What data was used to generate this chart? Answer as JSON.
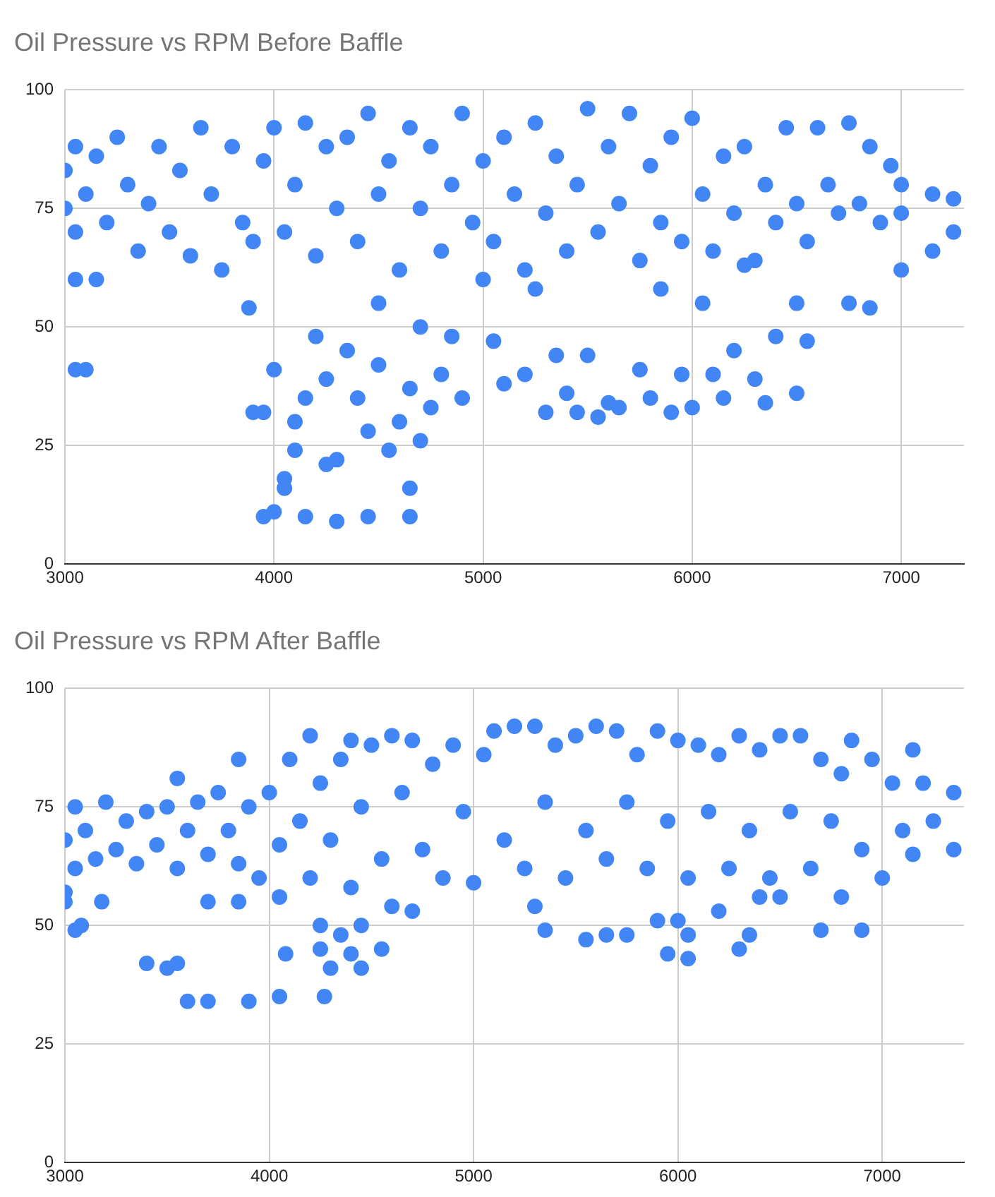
{
  "chart_data": [
    {
      "type": "scatter",
      "title": "Oil Pressure vs RPM Before Baffle",
      "xlim": [
        3000,
        7300
      ],
      "xticks": [
        3000,
        4000,
        5000,
        6000,
        7000
      ],
      "ylim": [
        0,
        100
      ],
      "yticks": [
        0,
        25,
        50,
        75,
        100
      ],
      "grid": true,
      "marker": "circle",
      "series": [
        {
          "color": "#4285f4",
          "x": [
            3000,
            3000,
            3050,
            3050,
            3100,
            3150,
            3200,
            3250,
            3300,
            3350,
            3400,
            3450,
            3500,
            3550,
            3600,
            3650,
            3700,
            3750,
            3800,
            3850,
            3900,
            3950,
            4000,
            4050,
            4100,
            4150,
            4200,
            4250,
            4300,
            4350,
            4400,
            4450,
            4500,
            4550,
            4600,
            4650,
            4700,
            4750,
            4800,
            4850,
            4900,
            4950,
            5000,
            5050,
            5100,
            5150,
            5200,
            5250,
            5300,
            5350,
            5400,
            5450,
            5500,
            5550,
            5600,
            5650,
            5700,
            5750,
            5800,
            5850,
            5900,
            5950,
            6000,
            6050,
            6100,
            6150,
            6200,
            6250,
            6300,
            6350,
            6400,
            6450,
            6500,
            6550,
            6600,
            6650,
            6700,
            6750,
            6800,
            6850,
            6900,
            6950,
            7000,
            7000,
            7150,
            7150,
            7250,
            7250,
            3050,
            3150,
            3050,
            3100,
            3880,
            3900,
            3950,
            4000,
            3950,
            4000,
            4050,
            4050,
            4100,
            4100,
            4150,
            4150,
            4200,
            4250,
            4250,
            4300,
            4300,
            4350,
            4400,
            4450,
            4450,
            4500,
            4550,
            4600,
            4650,
            4650,
            4650,
            4700,
            4750,
            4800,
            4850,
            4900,
            5050,
            5100,
            5200,
            5300,
            5350,
            5400,
            5450,
            5500,
            5550,
            5600,
            5650,
            5750,
            5800,
            5900,
            5950,
            6000,
            6050,
            6100,
            6150,
            6200,
            6300,
            6350,
            6400,
            6500,
            6500,
            6550,
            6750,
            6850,
            7000,
            4500,
            4700,
            5000,
            5250,
            5850,
            6250
          ],
          "values": [
            75,
            83,
            70,
            88,
            78,
            86,
            72,
            90,
            80,
            66,
            76,
            88,
            70,
            83,
            65,
            92,
            78,
            62,
            88,
            72,
            68,
            85,
            92,
            70,
            80,
            93,
            65,
            88,
            75,
            90,
            68,
            95,
            78,
            85,
            62,
            92,
            75,
            88,
            66,
            80,
            95,
            72,
            85,
            68,
            90,
            78,
            62,
            93,
            74,
            86,
            66,
            80,
            96,
            70,
            88,
            76,
            95,
            64,
            84,
            72,
            90,
            68,
            94,
            78,
            66,
            86,
            74,
            88,
            64,
            80,
            72,
            92,
            76,
            68,
            92,
            80,
            74,
            93,
            76,
            88,
            72,
            84,
            74,
            80,
            78,
            66,
            70,
            77,
            60,
            60,
            41,
            41,
            54,
            32,
            32,
            41,
            10,
            11,
            16,
            18,
            24,
            30,
            10,
            35,
            48,
            21,
            39,
            9,
            22,
            45,
            35,
            10,
            28,
            42,
            24,
            30,
            16,
            10,
            37,
            26,
            33,
            40,
            48,
            35,
            47,
            38,
            40,
            32,
            44,
            36,
            32,
            44,
            31,
            34,
            33,
            41,
            35,
            32,
            40,
            33,
            55,
            40,
            35,
            45,
            39,
            34,
            48,
            36,
            55,
            47,
            55,
            54,
            62,
            55,
            50,
            60,
            58,
            58,
            63
          ]
        }
      ]
    },
    {
      "type": "scatter",
      "title": "Oil Pressure vs RPM After Baffle",
      "xlim": [
        3000,
        7400
      ],
      "xticks": [
        3000,
        4000,
        5000,
        6000,
        7000
      ],
      "ylim": [
        0,
        100
      ],
      "yticks": [
        0,
        25,
        50,
        75,
        100
      ],
      "grid": true,
      "marker": "circle",
      "series": [
        {
          "color": "#4285f4",
          "x": [
            3000,
            3000,
            3050,
            3050,
            3100,
            3150,
            3200,
            3250,
            3300,
            3350,
            3400,
            3450,
            3500,
            3550,
            3550,
            3600,
            3650,
            3700,
            3750,
            3800,
            3850,
            3850,
            3900,
            3950,
            4000,
            4050,
            4100,
            4150,
            4200,
            4200,
            4250,
            4300,
            4350,
            4400,
            4400,
            4450,
            4500,
            4550,
            4600,
            4650,
            4700,
            4750,
            4800,
            4850,
            4900,
            4950,
            5000,
            5050,
            5100,
            5150,
            5200,
            5250,
            5300,
            5350,
            5400,
            5450,
            5500,
            5550,
            5600,
            5650,
            5700,
            5750,
            5800,
            5850,
            5900,
            5950,
            6000,
            6050,
            6100,
            6150,
            6200,
            6250,
            6300,
            6350,
            6400,
            6450,
            6500,
            6550,
            6600,
            6650,
            6700,
            6750,
            6800,
            6850,
            6900,
            6950,
            7000,
            7050,
            7100,
            7150,
            7150,
            7200,
            7250,
            7350,
            7350,
            3000,
            3050,
            3080,
            3180,
            3400,
            3500,
            3550,
            3600,
            3700,
            3700,
            3850,
            3900,
            4050,
            4050,
            4080,
            4250,
            4250,
            4270,
            4300,
            4350,
            4400,
            4450,
            4450,
            4550,
            4600,
            4700,
            5350,
            5300,
            5550,
            5650,
            5750,
            5900,
            5950,
            6000,
            6050,
            6050,
            6200,
            6300,
            6350,
            6400,
            6500,
            6700,
            6800,
            6900
          ],
          "values": [
            55,
            68,
            75,
            62,
            70,
            64,
            76,
            66,
            72,
            63,
            74,
            67,
            75,
            81,
            62,
            70,
            76,
            65,
            78,
            70,
            85,
            63,
            75,
            60,
            78,
            67,
            85,
            72,
            90,
            60,
            80,
            68,
            85,
            58,
            89,
            75,
            88,
            64,
            90,
            78,
            89,
            66,
            84,
            60,
            88,
            74,
            59,
            86,
            91,
            68,
            92,
            62,
            92,
            76,
            88,
            60,
            90,
            70,
            92,
            64,
            91,
            76,
            86,
            62,
            91,
            72,
            89,
            60,
            88,
            74,
            86,
            62,
            90,
            70,
            87,
            60,
            90,
            74,
            90,
            62,
            85,
            72,
            82,
            89,
            66,
            85,
            60,
            80,
            70,
            87,
            65,
            80,
            72,
            78,
            66,
            57,
            49,
            50,
            55,
            42,
            41,
            42,
            34,
            55,
            34,
            55,
            34,
            35,
            56,
            44,
            50,
            45,
            35,
            41,
            48,
            44,
            50,
            41,
            45,
            54,
            53,
            49,
            54,
            47,
            48,
            48,
            51,
            44,
            51,
            48,
            43,
            53,
            45,
            48,
            56,
            56,
            49,
            56,
            49
          ]
        }
      ]
    }
  ]
}
